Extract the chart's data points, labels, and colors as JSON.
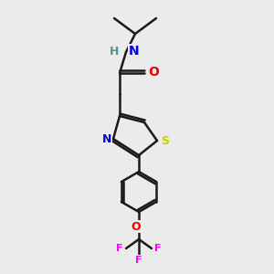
{
  "background_color": "#ebebeb",
  "bond_color": "#1a1a1a",
  "bond_lw": 1.8,
  "atom_colors": {
    "N": "#0000ee",
    "O": "#ee0000",
    "S": "#cccc00",
    "F": "#ff00ff",
    "H": "#4a9a8a",
    "C": "#1a1a1a"
  },
  "atom_bg": "#ebebeb"
}
